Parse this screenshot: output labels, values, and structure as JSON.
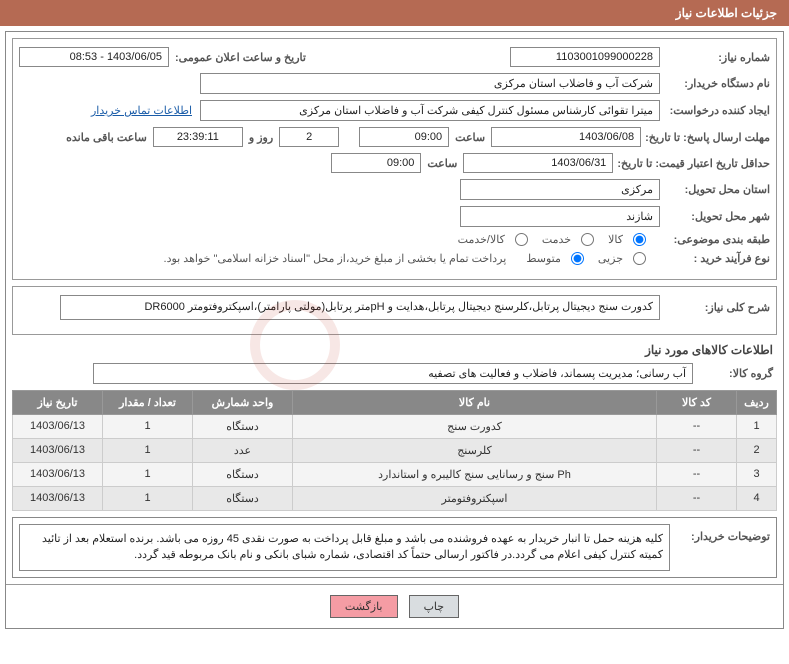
{
  "header": {
    "title": "جزئیات اطلاعات نیاز"
  },
  "fields": {
    "need_no_label": "شماره نیاز:",
    "need_no": "1103001099000228",
    "announce_label": "تاریخ و ساعت اعلان عمومی:",
    "announce_val": "1403/06/05 - 08:53",
    "buyer_label": "نام دستگاه خریدار:",
    "buyer_val": "شرکت آب و فاضلاب استان مرکزی",
    "requester_label": "ایجاد کننده درخواست:",
    "requester_val": "میترا تقوائی کارشناس مسئول کنترل کیفی شرکت آب و فاضلاب استان مرکزی",
    "contact_link": "اطلاعات تماس خریدار",
    "deadline_label": "مهلت ارسال پاسخ: تا تاریخ:",
    "deadline_date": "1403/06/08",
    "time_label": "ساعت",
    "deadline_time": "09:00",
    "days_val": "2",
    "days_label": "روز و",
    "counter": "23:39:11",
    "remain_label": "ساعت باقی مانده",
    "validity_label": "حداقل تاریخ اعتبار قیمت: تا تاریخ:",
    "validity_date": "1403/06/31",
    "validity_time": "09:00",
    "province_label": "استان محل تحویل:",
    "province_val": "مرکزی",
    "city_label": "شهر محل تحویل:",
    "city_val": "شازند",
    "category_label": "طبقه بندی موضوعی:",
    "cat1": "کالا",
    "cat2": "خدمت",
    "cat3": "کالا/خدمت",
    "process_label": "نوع فرآیند خرید :",
    "proc1": "جزیی",
    "proc2": "متوسط",
    "process_note": "پرداخت تمام یا بخشی از مبلغ خرید،از محل \"اسناد خزانه اسلامی\" خواهد بود.",
    "summary_label": "شرح کلی نیاز:",
    "summary_val": "کدورت سنج دیجیتال پرتابل،کلرسنج دیجیتال پرتابل،هدایت و pHمتر پرتابل(مولتی پارامتر)،اسپکتروفتومتر DR6000",
    "goods_title": "اطلاعات کالاهای مورد نیاز",
    "group_label": "گروه کالا:",
    "group_val": "آب رسانی؛ مدیریت پسماند، فاضلاب و فعالیت های تصفیه",
    "buyer_desc_label": "توضیحات خریدار:",
    "buyer_desc": "کلیه هزینه حمل تا انبار خریدار به عهده فروشنده می باشد و مبلغ قابل پرداخت به صورت نقدی 45 روزه می باشد. برنده استعلام بعد از تائید کمیته کنترل کیفی اعلام می گردد.در فاکتور ارسالی حتماً کد اقتصادی، شماره شبای بانکی و نام بانک مربوطه قید گردد."
  },
  "table": {
    "headers": [
      "ردیف",
      "کد کالا",
      "نام کالا",
      "واحد شمارش",
      "تعداد / مقدار",
      "تاریخ نیاز"
    ],
    "rows": [
      [
        "1",
        "--",
        "کدورت سنج",
        "دستگاه",
        "1",
        "1403/06/13"
      ],
      [
        "2",
        "--",
        "کلرسنج",
        "عدد",
        "1",
        "1403/06/13"
      ],
      [
        "3",
        "--",
        "Ph سنج و رسانایی سنج کالیبره و استاندارد",
        "دستگاه",
        "1",
        "1403/06/13"
      ],
      [
        "4",
        "--",
        "اسپکتروفتومتر",
        "دستگاه",
        "1",
        "1403/06/13"
      ]
    ]
  },
  "buttons": {
    "print": "چاپ",
    "back": "بازگشت"
  },
  "colors": {
    "header_bg": "#b56a53",
    "btn_back_bg": "#f59ca4"
  }
}
